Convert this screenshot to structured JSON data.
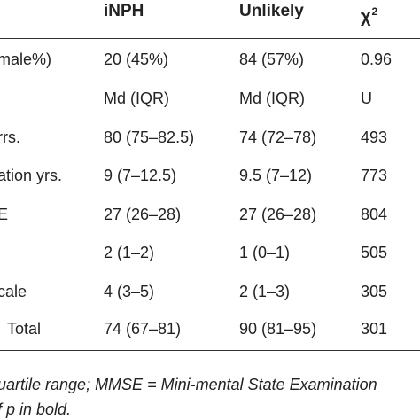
{
  "header": {
    "col_inph": "iNPH",
    "col_unlikely": "Unlikely",
    "col_stat": "χ",
    "col_stat_sup": "2"
  },
  "rows": [
    {
      "variable": "male%)",
      "inph": "20 (45%)",
      "unlikely": "84 (57%)",
      "stat": "0.96"
    },
    {
      "variable": "",
      "inph": "Md (IQR)",
      "unlikely": "Md (IQR)",
      "stat": "U"
    },
    {
      "variable": "rrs.",
      "inph": "80 (75–82.5)",
      "unlikely": "74 (72–78)",
      "stat": "493"
    },
    {
      "variable": "ation yrs.",
      "inph": "9 (7–12.5)",
      "unlikely": "9.5 (7–12)",
      "stat": "773"
    },
    {
      "variable": "E",
      "inph": "27 (26–28)",
      "unlikely": "27 (26–28)",
      "stat": "804"
    },
    {
      "variable": "",
      "inph": "2 (1–2)",
      "unlikely": "1 (0–1)",
      "stat": "505"
    },
    {
      "variable": "cale",
      "inph": "4 (3–5)",
      "unlikely": "2 (1–3)",
      "stat": "305"
    },
    {
      "variable": "Total",
      "inph": "74 (67–81)",
      "unlikely": "90 (81–95)",
      "stat": "301"
    }
  ],
  "footnote": {
    "line1": "uartile range; MMSE = Mini-mental State Examination",
    "line2": "f p in bold."
  }
}
